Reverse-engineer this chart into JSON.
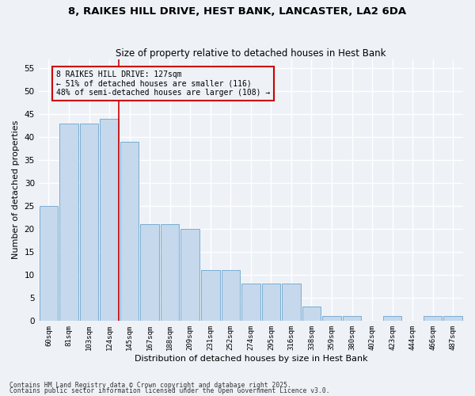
{
  "title": "8, RAIKES HILL DRIVE, HEST BANK, LANCASTER, LA2 6DA",
  "subtitle": "Size of property relative to detached houses in Hest Bank",
  "xlabel": "Distribution of detached houses by size in Hest Bank",
  "ylabel": "Number of detached properties",
  "categories": [
    "60sqm",
    "81sqm",
    "103sqm",
    "124sqm",
    "145sqm",
    "167sqm",
    "188sqm",
    "209sqm",
    "231sqm",
    "252sqm",
    "274sqm",
    "295sqm",
    "316sqm",
    "338sqm",
    "359sqm",
    "380sqm",
    "402sqm",
    "423sqm",
    "444sqm",
    "466sqm",
    "487sqm"
  ],
  "values": [
    25,
    43,
    43,
    44,
    39,
    21,
    21,
    20,
    11,
    11,
    8,
    8,
    8,
    3,
    1,
    1,
    0,
    1,
    0,
    1,
    1
  ],
  "bar_color": "#c5d8ec",
  "bar_edge_color": "#7aadd4",
  "reference_line_color": "#cc0000",
  "annotation_text": "8 RAIKES HILL DRIVE: 127sqm\n← 51% of detached houses are smaller (116)\n48% of semi-detached houses are larger (108) →",
  "annotation_box_color": "#cc0000",
  "ylim": [
    0,
    57
  ],
  "yticks": [
    0,
    5,
    10,
    15,
    20,
    25,
    30,
    35,
    40,
    45,
    50,
    55
  ],
  "background_color": "#eef2f7",
  "grid_color": "#ffffff",
  "footer1": "Contains HM Land Registry data © Crown copyright and database right 2025.",
  "footer2": "Contains public sector information licensed under the Open Government Licence v3.0."
}
